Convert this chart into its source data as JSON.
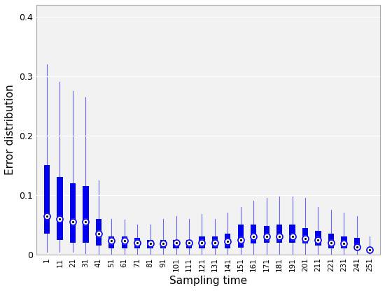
{
  "title": "",
  "xlabel": "Sampling time",
  "ylabel": "Error distribution",
  "ylim": [
    0,
    0.42
  ],
  "yticks": [
    0,
    0.1,
    0.2,
    0.3,
    0.4
  ],
  "xtick_labels": [
    "1",
    "11",
    "21",
    "31",
    "41",
    "51",
    "61",
    "71",
    "81",
    "91",
    "101",
    "111",
    "121",
    "131",
    "141",
    "151",
    "161",
    "171",
    "181",
    "191",
    "201",
    "211",
    "221",
    "231",
    "241",
    "251"
  ],
  "box_color": "#0000EE",
  "whisker_color": "#6666FF",
  "box_data": {
    "q1": [
      0.035,
      0.025,
      0.02,
      0.02,
      0.015,
      0.01,
      0.01,
      0.01,
      0.01,
      0.01,
      0.01,
      0.01,
      0.01,
      0.01,
      0.01,
      0.012,
      0.018,
      0.02,
      0.02,
      0.02,
      0.018,
      0.015,
      0.01,
      0.01,
      0.008,
      0.005
    ],
    "q3": [
      0.15,
      0.13,
      0.12,
      0.115,
      0.06,
      0.03,
      0.03,
      0.028,
      0.025,
      0.025,
      0.025,
      0.025,
      0.03,
      0.03,
      0.035,
      0.05,
      0.05,
      0.048,
      0.05,
      0.05,
      0.045,
      0.04,
      0.035,
      0.03,
      0.028,
      0.012
    ],
    "median": [
      0.065,
      0.06,
      0.055,
      0.055,
      0.035,
      0.023,
      0.023,
      0.02,
      0.018,
      0.018,
      0.02,
      0.02,
      0.02,
      0.02,
      0.022,
      0.025,
      0.03,
      0.03,
      0.03,
      0.03,
      0.027,
      0.025,
      0.02,
      0.018,
      0.013,
      0.008
    ],
    "whisker_low": [
      0.005,
      0.005,
      0.005,
      0.002,
      0.0,
      0.0,
      0.0,
      0.0,
      0.0,
      0.0,
      0.0,
      0.0,
      0.0,
      0.0,
      0.0,
      0.0,
      0.0,
      0.0,
      0.0,
      0.0,
      0.0,
      0.0,
      0.0,
      0.0,
      0.0,
      0.0
    ],
    "whisker_high": [
      0.32,
      0.29,
      0.275,
      0.265,
      0.125,
      0.06,
      0.058,
      0.05,
      0.05,
      0.06,
      0.065,
      0.06,
      0.068,
      0.06,
      0.07,
      0.08,
      0.09,
      0.095,
      0.098,
      0.098,
      0.095,
      0.08,
      0.075,
      0.07,
      0.065,
      0.03
    ]
  },
  "figure_width": 5.5,
  "figure_height": 4.16,
  "dpi": 100
}
